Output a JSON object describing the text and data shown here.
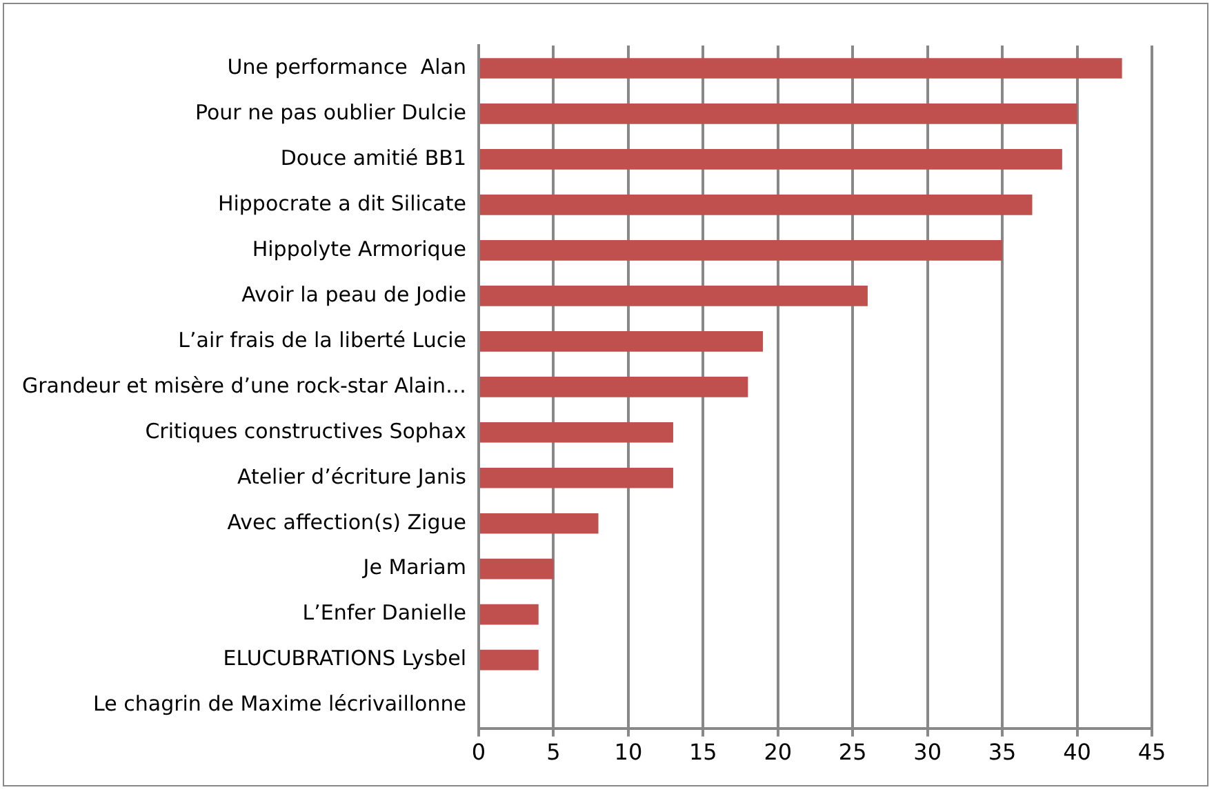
{
  "chart_data": {
    "type": "bar",
    "orientation": "horizontal",
    "categories": [
      "Une performance  Alan",
      "Pour ne pas oublier Dulcie",
      "Douce amitié BB1",
      "Hippocrate a dit Silicate",
      "Hippolyte Armorique",
      "Avoir la peau de Jodie",
      "L’air frais de la liberté Lucie",
      "Grandeur et misère d’une rock-star Alain…",
      "Critiques constructives Sophax",
      "Atelier d’écriture Janis",
      "Avec affection(s) Zigue",
      "Je Mariam",
      "L’Enfer Danielle",
      "ELUCUBRATIONS Lysbel",
      "Le chagrin de Maxime lécrivaillonne"
    ],
    "values": [
      43,
      40,
      39,
      37,
      35,
      26,
      19,
      18,
      13,
      13,
      8,
      5,
      4,
      4,
      0
    ],
    "color": "#c0504d",
    "xlim": [
      0,
      45
    ],
    "xticks": [
      0,
      5,
      10,
      15,
      20,
      25,
      30,
      35,
      40,
      45
    ],
    "grid": "x",
    "legend": false
  }
}
